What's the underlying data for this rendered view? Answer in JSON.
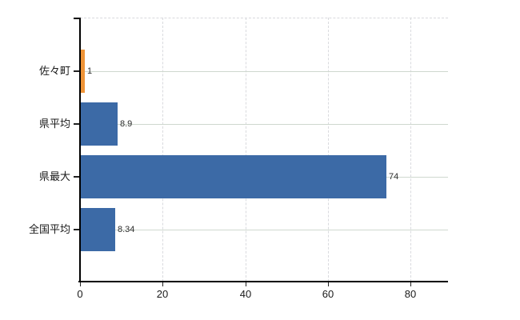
{
  "chart": {
    "background": "#ffffff",
    "colors": {
      "axis": "#000000",
      "tick": "#222222",
      "grid_horizontal": "#cfd8cf",
      "grid_vertical": "#d9dade",
      "value_label_text": "#2e2e2e",
      "tick_label_text": "#1a1a1a",
      "category_label_text": "#1a1a1a",
      "bar_highlight": "#ef9437",
      "bar_default": "#3c6aa6"
    }
  },
  "chart_data": {
    "type": "bar",
    "orientation": "horizontal",
    "title": "",
    "subtitle": "",
    "xlabel": "",
    "ylabel": "",
    "categories": [
      "佐々町",
      "県平均",
      "県最大",
      "全国平均"
    ],
    "values": [
      1,
      8.9,
      74,
      8.34
    ],
    "value_labels": [
      "1",
      "8.9",
      "74",
      "8.34"
    ],
    "bar_colors": [
      "#ef9437",
      "#3c6aa6",
      "#3c6aa6",
      "#3c6aa6"
    ],
    "x_ticks": [
      0,
      20,
      40,
      60,
      80
    ],
    "x_tick_labels": [
      "0",
      "20",
      "40",
      "60",
      "80"
    ],
    "xlim": [
      0,
      89
    ],
    "grid": "horizontal solid lines at category centers; vertical dashed lines at x ticks; dashed top plot border; no right border",
    "legend": "none"
  }
}
